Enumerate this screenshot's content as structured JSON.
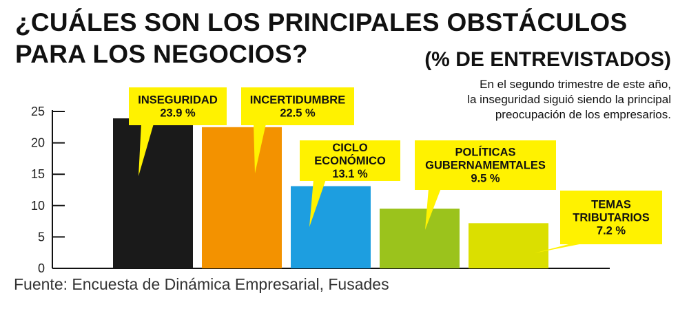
{
  "title": {
    "line1": "¿CUÁLES SON LOS PRINCIPALES OBSTÁCULOS",
    "line2": "PARA LOS NEGOCIOS?"
  },
  "subtitle": "(% DE ENTREVISTADOS)",
  "note": {
    "line1": "En el segundo trimestre de este año,",
    "line2": "la inseguridad siguió siendo la principal",
    "line3": "preocupación de los empresarios."
  },
  "source": "Fuente: Encuesta de Dinámica Empresarial, Fusades",
  "colors": {
    "callout": "#fff200",
    "axis": "#111111"
  },
  "chart_data": {
    "type": "bar",
    "categories": [
      "INSEGURIDAD",
      "INCERTIDUMBRE",
      "CICLO ECONÓMICO",
      "POLÍTICAS GUBERNAMEMTALES",
      "TEMAS TRIBUTARIOS"
    ],
    "values": [
      23.9,
      22.5,
      13.1,
      9.5,
      7.2
    ],
    "value_labels": [
      "23.9 %",
      "22.5 %",
      "13.1 %",
      "9.5 %",
      "7.2 %"
    ],
    "label_lines": [
      [
        "INSEGURIDAD"
      ],
      [
        "INCERTIDUMBRE"
      ],
      [
        "CICLO",
        "ECONÓMICO"
      ],
      [
        "POLÍTICAS",
        "GUBERNAMEMTALES"
      ],
      [
        "TEMAS",
        "TRIBUTARIOS"
      ]
    ],
    "colors": [
      "#1a1a1a",
      "#f39200",
      "#1d9ee0",
      "#9bc31c",
      "#dbdf00"
    ],
    "yticks": [
      0,
      5,
      10,
      15,
      20,
      25
    ],
    "ylim": [
      0,
      25
    ],
    "grid": false,
    "legend": "none"
  }
}
